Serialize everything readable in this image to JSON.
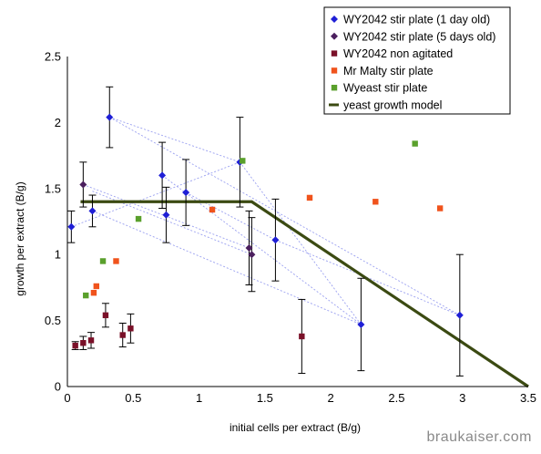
{
  "chart_data": {
    "type": "scatter",
    "xlabel": "initial cells per extract (B/g)",
    "ylabel": "growth per extract (B/g)",
    "xlim": [
      0,
      3.5
    ],
    "ylim": [
      0,
      2.5
    ],
    "xticks": [
      "0",
      "0.5",
      "1",
      "1.5",
      "2",
      "2.5",
      "3",
      "3.5"
    ],
    "yticks": [
      "0",
      "0.5",
      "1",
      "1.5",
      "2",
      "2.5"
    ],
    "grid": false,
    "legend_position": "top-right",
    "series": [
      {
        "name": "WY2042 stir plate (1 day old)",
        "marker": "diamond",
        "color": "#1f1fd6",
        "points": [
          {
            "x": 0.03,
            "y": 1.21,
            "err": 0.12
          },
          {
            "x": 0.19,
            "y": 1.33,
            "err": 0.12
          },
          {
            "x": 0.32,
            "y": 2.04,
            "err": 0.23
          },
          {
            "x": 0.72,
            "y": 1.6,
            "err": 0.25
          },
          {
            "x": 0.75,
            "y": 1.3,
            "err": 0.21
          },
          {
            "x": 0.9,
            "y": 1.47,
            "err": 0.25
          },
          {
            "x": 1.31,
            "y": 1.7,
            "err": 0.34
          },
          {
            "x": 1.58,
            "y": 1.11,
            "err": 0.31
          },
          {
            "x": 2.23,
            "y": 0.47,
            "err": 0.35
          },
          {
            "x": 2.98,
            "y": 0.54,
            "err": 0.46
          }
        ]
      },
      {
        "name": "WY2042 stir plate (5 days old)",
        "marker": "diamond",
        "color": "#4b1f5e",
        "points": [
          {
            "x": 0.12,
            "y": 1.53,
            "err": 0.17
          },
          {
            "x": 1.38,
            "y": 1.05,
            "err": 0.28
          },
          {
            "x": 1.4,
            "y": 1.0,
            "err": 0.28
          }
        ]
      },
      {
        "name": "WY2042 non agitated",
        "marker": "square",
        "color": "#7a1028",
        "points": [
          {
            "x": 0.06,
            "y": 0.31,
            "err": 0.03
          },
          {
            "x": 0.12,
            "y": 0.33,
            "err": 0.05
          },
          {
            "x": 0.18,
            "y": 0.35,
            "err": 0.06
          },
          {
            "x": 0.29,
            "y": 0.54,
            "err": 0.09
          },
          {
            "x": 0.42,
            "y": 0.39,
            "err": 0.09
          },
          {
            "x": 0.48,
            "y": 0.44,
            "err": 0.11
          },
          {
            "x": 1.78,
            "y": 0.38,
            "err": 0.28
          }
        ]
      },
      {
        "name": "Mr Malty stir plate",
        "marker": "square",
        "color": "#f0531c",
        "points": [
          {
            "x": 0.2,
            "y": 0.71
          },
          {
            "x": 0.22,
            "y": 0.76
          },
          {
            "x": 0.37,
            "y": 0.95
          },
          {
            "x": 1.1,
            "y": 1.34
          },
          {
            "x": 1.84,
            "y": 1.43
          },
          {
            "x": 2.34,
            "y": 1.4
          },
          {
            "x": 2.83,
            "y": 1.35
          }
        ]
      },
      {
        "name": "Wyeast stir plate",
        "marker": "square",
        "color": "#5aa02c",
        "points": [
          {
            "x": 0.14,
            "y": 0.69
          },
          {
            "x": 0.27,
            "y": 0.95
          },
          {
            "x": 0.54,
            "y": 1.27
          },
          {
            "x": 1.33,
            "y": 1.71
          },
          {
            "x": 2.64,
            "y": 1.84
          }
        ]
      },
      {
        "name": "yeast growth model",
        "marker": "line",
        "color": "#3b4a12",
        "points": [
          {
            "x": 0.1,
            "y": 1.4
          },
          {
            "x": 1.4,
            "y": 1.4
          },
          {
            "x": 3.5,
            "y": 0
          }
        ]
      }
    ],
    "connector_lines": {
      "color": "#9aa0f0",
      "segments": [
        [
          {
            "x": 0.32,
            "y": 2.04
          },
          {
            "x": 1.31,
            "y": 1.7
          }
        ],
        [
          {
            "x": 0.32,
            "y": 2.04
          },
          {
            "x": 2.98,
            "y": 0.54
          }
        ],
        [
          {
            "x": 0.03,
            "y": 1.21
          },
          {
            "x": 1.31,
            "y": 1.7
          }
        ],
        [
          {
            "x": 0.19,
            "y": 1.33
          },
          {
            "x": 2.23,
            "y": 0.47
          }
        ],
        [
          {
            "x": 0.12,
            "y": 1.53
          },
          {
            "x": 1.38,
            "y": 1.05
          }
        ],
        [
          {
            "x": 0.19,
            "y": 1.48
          },
          {
            "x": 1.4,
            "y": 1.0
          }
        ],
        [
          {
            "x": 0.72,
            "y": 1.6
          },
          {
            "x": 2.23,
            "y": 0.47
          }
        ],
        [
          {
            "x": 0.9,
            "y": 1.47
          },
          {
            "x": 1.58,
            "y": 1.11
          }
        ],
        [
          {
            "x": 1.31,
            "y": 1.7
          },
          {
            "x": 2.23,
            "y": 0.47
          }
        ],
        [
          {
            "x": 1.58,
            "y": 1.11
          },
          {
            "x": 2.98,
            "y": 0.54
          }
        ]
      ]
    }
  },
  "watermark": "braukaiser.com"
}
